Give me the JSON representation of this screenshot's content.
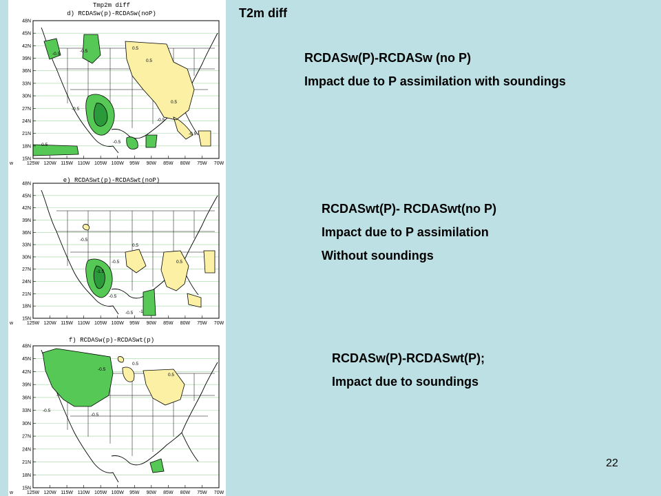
{
  "slide": {
    "title": "T2m diff",
    "page_number": "22"
  },
  "descriptions": {
    "d": {
      "line1": "RCDASw(P)-RCDASw (no P)",
      "line2": "Impact due to P assimilation with soundings"
    },
    "e": {
      "line1": "RCDASwt(P)- RCDASwt(no P)",
      "line2": "Impact due to P assimilation",
      "line3": "Without soundings"
    },
    "f": {
      "line1": "RCDASw(P)-RCDASwt(P);",
      "line2": "Impact due to soundings"
    }
  },
  "map_panels": [
    {
      "id": "d",
      "supertitle": "Tmp2m diff",
      "title": "d) RCDASw(p)-RCDASw(noP)",
      "contour_labels": [
        "-0.5",
        "-0.5",
        "-0.5",
        "-0.5",
        "-0.5",
        "0.5",
        "0.5",
        "0.5",
        "-0.5",
        "-0.5"
      ]
    },
    {
      "id": "e",
      "title": "e) RCDASwt(p)-RCDASwt(noP)",
      "contour_labels": [
        "-0.5",
        "-0.5",
        "-1.5",
        "-0.5",
        "0.5",
        "0.5",
        "-0.5",
        "-1"
      ]
    },
    {
      "id": "f",
      "title": "f) RCDASw(p)-RCDASwt(p)",
      "contour_labels": [
        "-0.5",
        "-0.5",
        "0.5",
        "0.5",
        "-0.5"
      ]
    }
  ],
  "map_axes": {
    "lat_labels": [
      "48N",
      "45N",
      "42N",
      "39N",
      "36N",
      "33N",
      "30N",
      "27N",
      "24N",
      "21N",
      "18N",
      "15N"
    ],
    "lon_labels": [
      "125W",
      "120W",
      "115W",
      "110W",
      "105W",
      "100W",
      "95W",
      "90W",
      "85W",
      "80W",
      "75W",
      "70W"
    ],
    "edge_marker": "w",
    "colors": {
      "negative_fill": "#55c855",
      "negative_strong": "#2a9a3a",
      "positive_fill": "#fbf0a4",
      "contour": "#000000",
      "grid": "#9ed89e"
    }
  }
}
